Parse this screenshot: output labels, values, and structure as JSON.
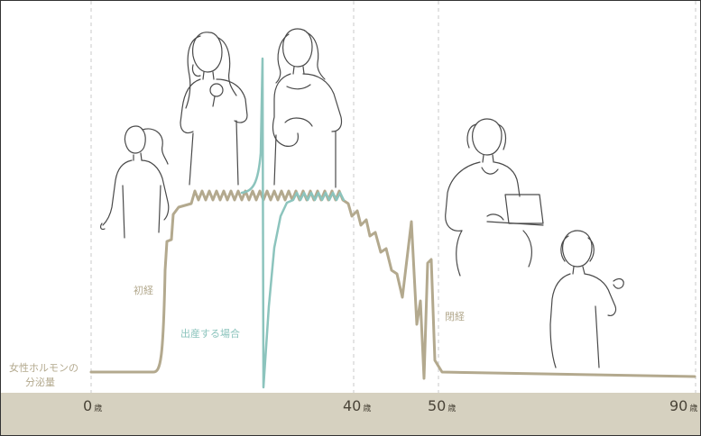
{
  "labels": {
    "hormone_line1": "女性ホルモンの",
    "hormone_line2": "分泌量",
    "menarche": "初経",
    "childbirth": "出産する場合",
    "menopause": "閉経"
  },
  "age_markers": [
    {
      "value": "0",
      "unit": "歳"
    },
    {
      "value": "40",
      "unit": "歳"
    },
    {
      "value": "50",
      "unit": "歳"
    },
    {
      "value": "90",
      "unit": "歳"
    }
  ],
  "colors": {
    "hormone_curve": "#b3a98e",
    "childbirth_curve": "#8cc4bd",
    "baseline_band": "#d6d1c0",
    "figure_line": "#4a4a4a",
    "guide_line": "#c8c8c8",
    "label_text": "#b3a98e",
    "age_text": "#4a4438"
  },
  "figures": [
    {
      "name": "girl-figure",
      "icon": "child-silhouette"
    },
    {
      "name": "young-woman-figure",
      "icon": "woman-with-mirror"
    },
    {
      "name": "pregnant-woman-figure",
      "icon": "pregnant-woman"
    },
    {
      "name": "woman-laptop-figure",
      "icon": "woman-with-laptop"
    },
    {
      "name": "elderly-woman-figure",
      "icon": "elderly-woman-walking"
    }
  ]
}
